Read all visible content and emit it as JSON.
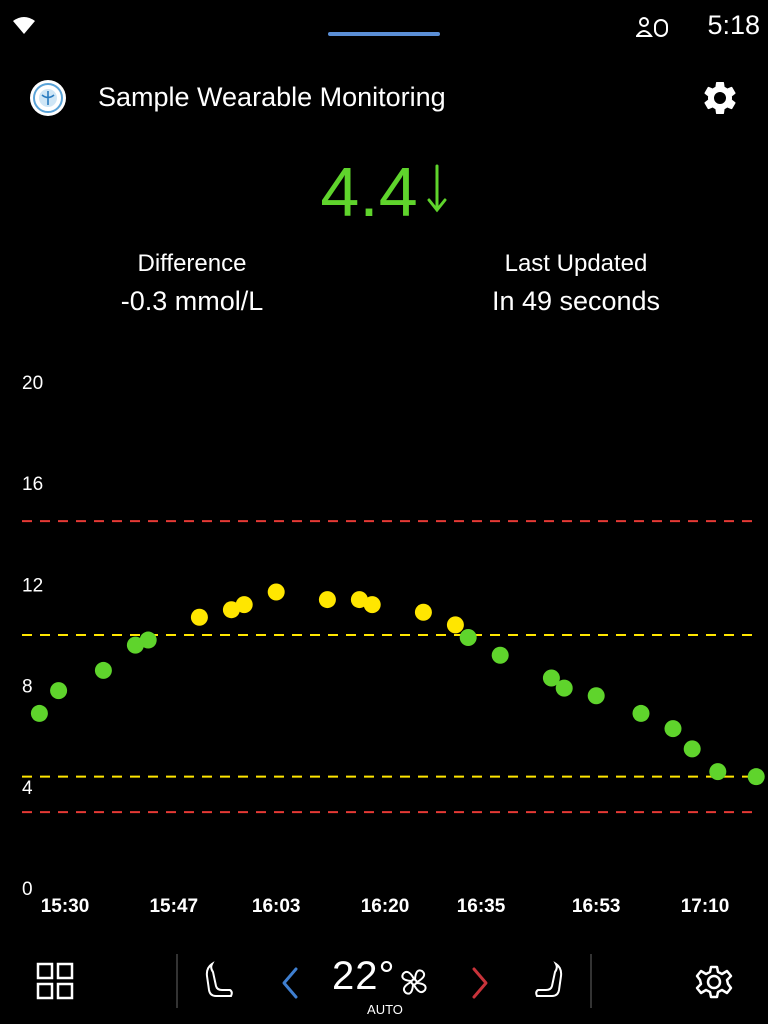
{
  "status_bar": {
    "time": "5:18"
  },
  "app": {
    "title": "Sample Wearable Monitoring"
  },
  "reading": {
    "value": "4.4",
    "trend": "down"
  },
  "difference": {
    "label": "Difference",
    "value": "-0.3 mmol/L"
  },
  "last_updated": {
    "label": "Last Updated",
    "value": "In 49 seconds"
  },
  "colors": {
    "in_range": "#5fd42c",
    "elevated": "#ffe600",
    "limit_high_low_red": "#e53935",
    "target_yellow": "#ffe600"
  },
  "chart_data": {
    "type": "scatter",
    "ylim": [
      0,
      20
    ],
    "yticks": [
      0,
      4,
      8,
      12,
      16,
      20
    ],
    "xticks": [
      "15:30",
      "15:47",
      "16:03",
      "16:20",
      "16:35",
      "16:53",
      "17:10"
    ],
    "reference_lines": [
      {
        "y": 14.5,
        "color": "#e53935",
        "style": "dashed"
      },
      {
        "y": 10,
        "color": "#ffe600",
        "style": "dashed"
      },
      {
        "y": 4.4,
        "color": "#ffe600",
        "style": "dashed"
      },
      {
        "y": 3,
        "color": "#e53935",
        "style": "dashed"
      }
    ],
    "series": [
      {
        "points": [
          {
            "x": "15:26",
            "y": 6.9,
            "color": "#5fd42c"
          },
          {
            "x": "15:29",
            "y": 7.8,
            "color": "#5fd42c"
          },
          {
            "x": "15:36",
            "y": 8.6,
            "color": "#5fd42c"
          },
          {
            "x": "15:41",
            "y": 9.6,
            "color": "#5fd42c"
          },
          {
            "x": "15:43",
            "y": 9.8,
            "color": "#5fd42c"
          },
          {
            "x": "15:51",
            "y": 10.7,
            "color": "#ffe600"
          },
          {
            "x": "15:56",
            "y": 11.0,
            "color": "#ffe600"
          },
          {
            "x": "15:58",
            "y": 11.2,
            "color": "#ffe600"
          },
          {
            "x": "16:03",
            "y": 11.7,
            "color": "#ffe600"
          },
          {
            "x": "16:11",
            "y": 11.4,
            "color": "#ffe600"
          },
          {
            "x": "16:16",
            "y": 11.4,
            "color": "#ffe600"
          },
          {
            "x": "16:18",
            "y": 11.2,
            "color": "#ffe600"
          },
          {
            "x": "16:26",
            "y": 10.9,
            "color": "#ffe600"
          },
          {
            "x": "16:31",
            "y": 10.4,
            "color": "#ffe600"
          },
          {
            "x": "16:33",
            "y": 9.9,
            "color": "#5fd42c"
          },
          {
            "x": "16:38",
            "y": 9.2,
            "color": "#5fd42c"
          },
          {
            "x": "16:46",
            "y": 8.3,
            "color": "#5fd42c"
          },
          {
            "x": "16:48",
            "y": 7.9,
            "color": "#5fd42c"
          },
          {
            "x": "16:53",
            "y": 7.6,
            "color": "#5fd42c"
          },
          {
            "x": "17:00",
            "y": 6.9,
            "color": "#5fd42c"
          },
          {
            "x": "17:05",
            "y": 6.3,
            "color": "#5fd42c"
          },
          {
            "x": "17:08",
            "y": 5.5,
            "color": "#5fd42c"
          },
          {
            "x": "17:12",
            "y": 4.6,
            "color": "#5fd42c"
          },
          {
            "x": "17:18",
            "y": 4.4,
            "color": "#5fd42c"
          }
        ]
      }
    ]
  },
  "car_bar": {
    "temperature": "22°",
    "fan_mode": "AUTO",
    "icons": [
      "apps-grid-icon",
      "seat-heat-left-icon",
      "chevron-left-icon",
      "fan-icon",
      "chevron-right-icon",
      "seat-heat-right-icon",
      "gear-icon"
    ]
  }
}
